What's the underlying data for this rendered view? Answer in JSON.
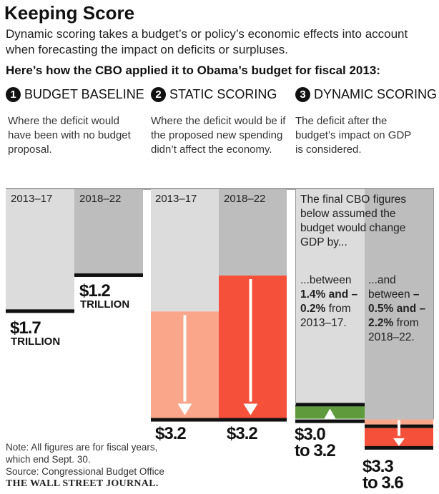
{
  "title": "Keeping Score",
  "subtitle": "Dynamic scoring takes a budget’s or policy’s economic effects into account when forecasting the impact on deficits or surpluses.",
  "subhead": "Here’s how the CBO applied it to Obama’s budget for fiscal 2013:",
  "steps": [
    {
      "num": "1",
      "label": "BUDGET BASELINE",
      "desc": "Where the deficit would have been with no budget proposal."
    },
    {
      "num": "2",
      "label": "STATIC SCORING",
      "desc": "Where the deficit would be if the proposed new spending didn’t affect the economy."
    },
    {
      "num": "3",
      "label": "DYNAMIC SCORING",
      "desc": "The deficit after the budget’s impact on GDP is considered."
    }
  ],
  "labels": {
    "p1": "2013–17",
    "p2": "2018–22",
    "trillion": "TRILLION",
    "b1": "$1.7",
    "b2": "$1.2",
    "s1": "$3.2",
    "s2": "$3.2",
    "d1a": "$3.0",
    "d1b": "to 3.2",
    "d2a": "$3.3",
    "d2b": "to 3.6",
    "gdp_intro": "The final CBO figures below assumed the budget would change GDP by...",
    "gdp1_a": "...between ",
    "gdp1_b": "1.4% and –0.2%",
    "gdp1_c": " from 2013–17.",
    "gdp2_a": "...and between ",
    "gdp2_b": "–0.5% and –2.2%",
    "gdp2_c": "  from 2018–22."
  },
  "note": "Note: All figures are for fiscal years, which end Sept. 30.",
  "source": "Source: Congressional Budget Office",
  "credit": "THE WALL STREET JOURNAL.",
  "colors": {
    "gray_light": "#dcdcdc",
    "gray_dark": "#bdbdbd",
    "salmon": "#f9a68a",
    "red": "#f4503a",
    "green": "#5f9a3c",
    "black": "#111111"
  },
  "chart_data": {
    "type": "bar",
    "title": "Keeping Score",
    "unit": "trillion dollars (deficit)",
    "categories": [
      "2013–17",
      "2018–22"
    ],
    "series": [
      {
        "name": "Budget baseline",
        "values": [
          1.7,
          1.2
        ]
      },
      {
        "name": "Static scoring",
        "values": [
          3.2,
          3.2
        ]
      },
      {
        "name": "Dynamic scoring low",
        "values": [
          3.0,
          3.3
        ]
      },
      {
        "name": "Dynamic scoring high",
        "values": [
          3.2,
          3.6
        ]
      }
    ]
  }
}
